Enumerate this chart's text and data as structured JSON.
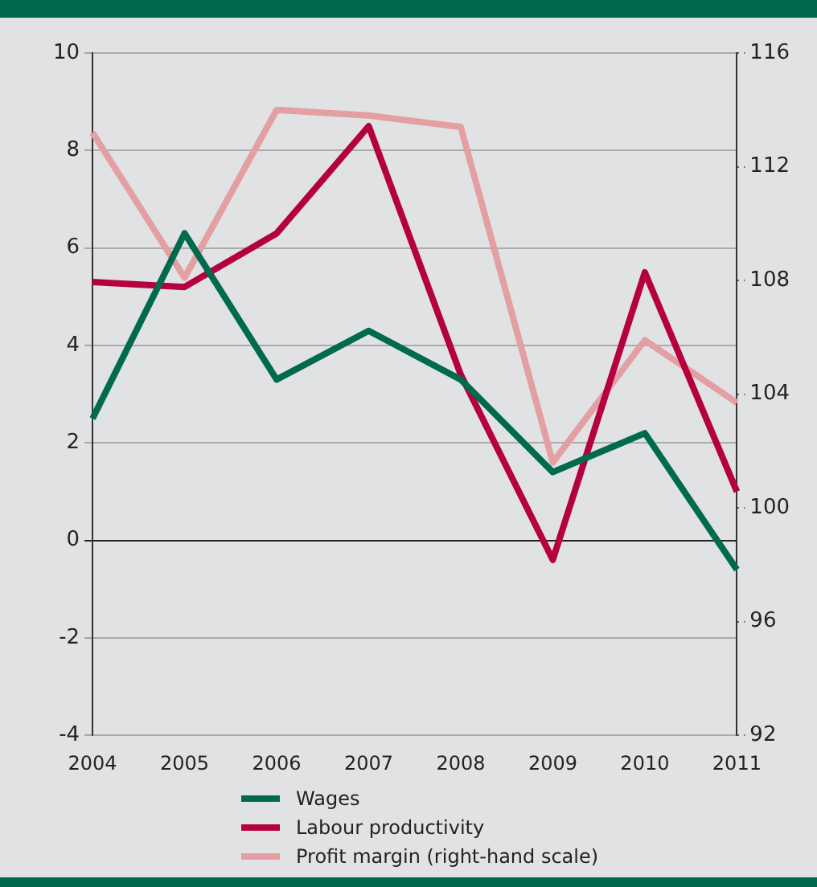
{
  "chart_data": {
    "type": "line",
    "categories": [
      "2004",
      "2005",
      "2006",
      "2007",
      "2008",
      "2009",
      "2010",
      "2011"
    ],
    "series": [
      {
        "name": "Wages",
        "color": "#006a4e",
        "values": [
          2.5,
          6.3,
          3.3,
          4.3,
          3.3,
          1.4,
          2.2,
          -0.6
        ]
      },
      {
        "name": "Labour productivity",
        "color": "#b5003f",
        "values": [
          5.3,
          5.2,
          6.3,
          8.5,
          3.4,
          -0.4,
          5.5,
          1.0
        ]
      },
      {
        "name": "Profit margin (right-hand scale)",
        "color": "#e39fa2",
        "axis": "y2",
        "values": [
          113.2,
          108.1,
          114.0,
          113.8,
          113.4,
          101.6,
          105.9,
          103.7
        ]
      }
    ],
    "ylim": [
      -4,
      10
    ],
    "yticks": [
      -4,
      -2,
      0,
      2,
      4,
      6,
      8,
      10
    ],
    "y2lim": [
      92,
      116
    ],
    "y2ticks": [
      92,
      96,
      100,
      104,
      108,
      112,
      116
    ],
    "grid": "y",
    "legend": "bottom",
    "marker": "none",
    "line_style": "solid"
  }
}
